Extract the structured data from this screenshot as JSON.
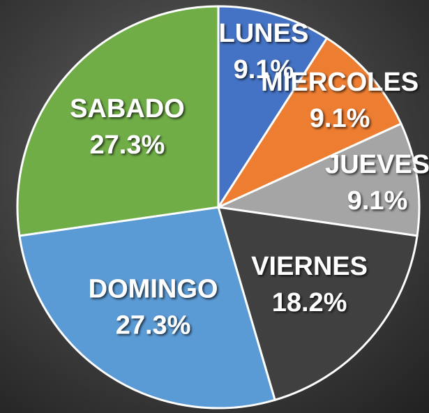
{
  "chart_data": {
    "type": "pie",
    "categories": [
      "LUNES",
      "MIERCOLES",
      "JUEVES",
      "VIERNES",
      "DOMINGO",
      "SABADO"
    ],
    "values": [
      9.1,
      9.1,
      9.1,
      18.2,
      27.3,
      27.3
    ],
    "value_labels": [
      "9.1%",
      "9.1%",
      "9.1%",
      "18.2%",
      "27.3%",
      "27.3%"
    ],
    "colors": [
      "#4472c4",
      "#ed7d31",
      "#a5a5a5",
      "#404040",
      "#5b9bd5",
      "#70ad47"
    ]
  }
}
